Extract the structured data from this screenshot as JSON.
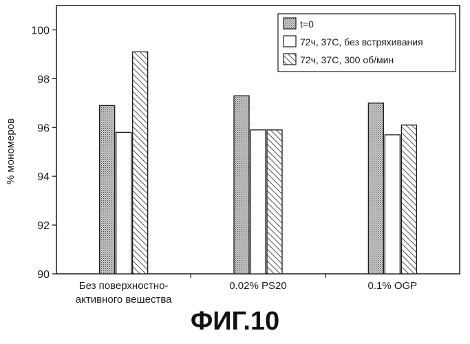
{
  "chart_data": {
    "type": "bar",
    "title": "",
    "ylabel": "% мономеров",
    "xlabel": "",
    "ylim": [
      90,
      101
    ],
    "yticks": [
      90,
      92,
      94,
      96,
      98,
      100
    ],
    "categories": [
      [
        "Без поверхностно-",
        "активного вещества"
      ],
      [
        "0.02% PS20"
      ],
      [
        "0.1% OGP"
      ]
    ],
    "series": [
      {
        "name": "t=0",
        "pattern": "dotted",
        "values": [
          96.9,
          97.3,
          97.0
        ]
      },
      {
        "name": "72ч, 37C,  без встряхивания",
        "pattern": "none",
        "values": [
          95.8,
          95.9,
          95.7
        ]
      },
      {
        "name": "72ч, 37C,  300 об/мин",
        "pattern": "hatched",
        "values": [
          99.1,
          95.9,
          96.1
        ]
      }
    ],
    "legend_position": "top-right",
    "grid": false
  },
  "figure_label": "ФИГ.10",
  "colors": {
    "ink": "#1a1a1a",
    "dots": "#555555",
    "background": "#ffffff"
  }
}
